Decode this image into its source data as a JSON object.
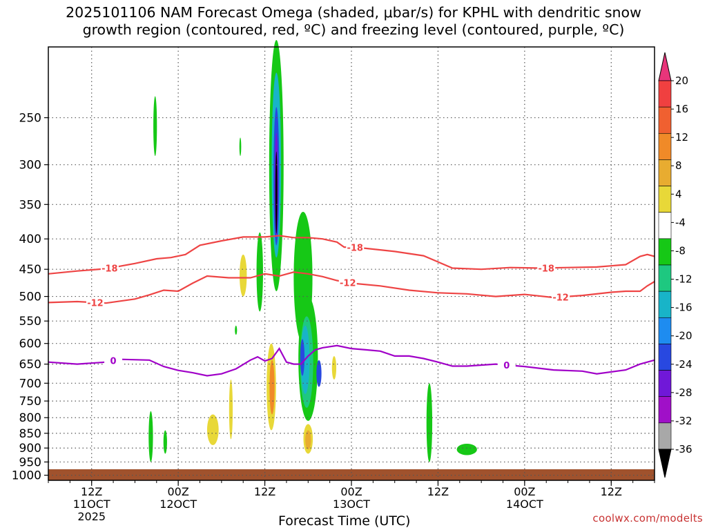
{
  "title_line1": "2025101106 NAM Forecast Omega (shaded, μbar/s) for KPHL with dendritic snow",
  "title_line2": "growth region (contoured, red, ºC) and freezing level (contoured, purple, ºC)",
  "credit": "coolwx.com/modelts",
  "chart_data": {
    "type": "heatmap",
    "xlabel": "Forecast Time (UTC)",
    "ylabel": "",
    "x_unit": "hours since 2025-10-11 06Z",
    "xlim": [
      0,
      84
    ],
    "ylim_hPa": [
      1020,
      190
    ],
    "x_ticks": [
      {
        "h": 6,
        "lines": [
          "12Z",
          "11OCT",
          "2025"
        ]
      },
      {
        "h": 18,
        "lines": [
          "00Z",
          "12OCT"
        ]
      },
      {
        "h": 30,
        "lines": [
          "12Z"
        ]
      },
      {
        "h": 42,
        "lines": [
          "00Z",
          "13OCT"
        ]
      },
      {
        "h": 54,
        "lines": [
          "12Z"
        ]
      },
      {
        "h": 66,
        "lines": [
          "00Z",
          "14OCT"
        ]
      },
      {
        "h": 78,
        "lines": [
          "12Z"
        ]
      }
    ],
    "y_ticks": [
      250,
      300,
      350,
      400,
      450,
      500,
      550,
      600,
      650,
      700,
      750,
      800,
      850,
      900,
      950,
      1000
    ],
    "colorbar": {
      "labels": [
        "20",
        "16",
        "12",
        "8",
        "4",
        "-4",
        "-8",
        "-12",
        "-16",
        "-20",
        "-24",
        "-28",
        "-32",
        "-36"
      ],
      "colors": [
        "#e8357a",
        "#f04040",
        "#f06030",
        "#f08a28",
        "#e8ac30",
        "#e8d838",
        "#ffffff",
        "#16c816",
        "#1ec880",
        "#18b4c8",
        "#1e8cf0",
        "#2848e0",
        "#7018d8",
        "#a010c8",
        "#a8a8a8",
        "#000000"
      ]
    },
    "series": [
      {
        "name": "-18",
        "color": "#ee4444",
        "labels_at_h": [
          8.5,
          42.5,
          69
        ],
        "x": [
          0,
          4,
          8,
          12,
          15,
          17,
          19,
          21,
          24,
          27,
          30,
          32,
          34,
          36,
          38,
          40,
          41,
          42,
          44,
          48,
          52,
          56,
          60,
          64,
          68,
          72,
          76,
          80,
          82,
          83,
          84
        ],
        "p": [
          458,
          453,
          449,
          440,
          432,
          430,
          425,
          410,
          403,
          397,
          397,
          395,
          398,
          398,
          400,
          405,
          413,
          413,
          415,
          420,
          427,
          448,
          450,
          447,
          448,
          447,
          446,
          442,
          428,
          425,
          428
        ]
      },
      {
        "name": "-12",
        "color": "#ee4444",
        "labels_at_h": [
          6.5,
          41.5,
          71
        ],
        "x": [
          0,
          4,
          8,
          12,
          14,
          16,
          18,
          20,
          22,
          25,
          28,
          30,
          32,
          34,
          36,
          38,
          40,
          42,
          46,
          50,
          54,
          58,
          62,
          66,
          70,
          74,
          78,
          80,
          82,
          83,
          84
        ],
        "p": [
          512,
          510,
          513,
          505,
          497,
          488,
          490,
          475,
          462,
          465,
          465,
          458,
          462,
          455,
          458,
          463,
          470,
          475,
          480,
          488,
          493,
          495,
          500,
          496,
          502,
          498,
          492,
          490,
          490,
          480,
          472
        ]
      },
      {
        "name": "0",
        "color": "#a000c8",
        "labels_at_h": [
          9,
          63.5
        ],
        "x": [
          0,
          4,
          8,
          10,
          14,
          16,
          18,
          20,
          22,
          24,
          26,
          28,
          29,
          30,
          31,
          32,
          33,
          34,
          35,
          36,
          37,
          38,
          40,
          42,
          44,
          46,
          48,
          50,
          52,
          54,
          56,
          58,
          62,
          66,
          70,
          74,
          76,
          80,
          82,
          84
        ],
        "p": [
          645,
          650,
          645,
          638,
          640,
          656,
          666,
          672,
          680,
          675,
          662,
          640,
          632,
          642,
          636,
          612,
          645,
          650,
          650,
          630,
          615,
          610,
          605,
          612,
          615,
          618,
          630,
          630,
          636,
          645,
          655,
          655,
          650,
          656,
          665,
          668,
          675,
          665,
          650,
          640
        ]
      }
    ],
    "omega_blobs": [
      {
        "h": 31.6,
        "p": 185,
        "w": 2.0,
        "h2": 490,
        "fill": "#16c816"
      },
      {
        "h": 31.6,
        "p": 210,
        "w": 1.3,
        "h2": 430,
        "fill": "#18b4c8"
      },
      {
        "h": 31.6,
        "p": 240,
        "w": 0.8,
        "h2": 410,
        "fill": "#2848e0"
      },
      {
        "h": 31.6,
        "p": 265,
        "w": 0.5,
        "h2": 395,
        "fill": "#7018d8"
      },
      {
        "h": 31.6,
        "p": 285,
        "w": 0.28,
        "h2": 392,
        "fill": "#000000"
      },
      {
        "h": 35.3,
        "p": 360,
        "w": 2.6,
        "h2": 600,
        "fill": "#16c816"
      },
      {
        "h": 36.0,
        "p": 500,
        "w": 2.7,
        "h2": 810,
        "fill": "#16c816"
      },
      {
        "h": 35.8,
        "p": 540,
        "w": 1.8,
        "h2": 770,
        "fill": "#1ec880"
      },
      {
        "h": 35.6,
        "p": 560,
        "w": 1.2,
        "h2": 730,
        "fill": "#18b4c8"
      },
      {
        "h": 35.2,
        "p": 590,
        "w": 0.6,
        "h2": 680,
        "fill": "#2848e0"
      },
      {
        "h": 37.5,
        "p": 640,
        "w": 0.7,
        "h2": 710,
        "fill": "#2848e0"
      },
      {
        "h": 29.3,
        "p": 390,
        "w": 0.9,
        "h2": 530,
        "fill": "#16c816"
      },
      {
        "h": 30.9,
        "p": 600,
        "w": 1.3,
        "h2": 840,
        "fill": "#e8d838"
      },
      {
        "h": 31.0,
        "p": 640,
        "w": 0.7,
        "h2": 790,
        "fill": "#f08a28"
      },
      {
        "h": 36.0,
        "p": 820,
        "w": 1.3,
        "h2": 920,
        "fill": "#e8d838"
      },
      {
        "h": 36.0,
        "p": 840,
        "w": 0.8,
        "h2": 905,
        "fill": "#e8ac30"
      },
      {
        "h": 39.6,
        "p": 630,
        "w": 0.6,
        "h2": 690,
        "fill": "#e8d838"
      },
      {
        "h": 27.0,
        "p": 425,
        "w": 1.0,
        "h2": 500,
        "fill": "#e8d838"
      },
      {
        "h": 14.8,
        "p": 230,
        "w": 0.5,
        "h2": 290,
        "fill": "#16c816"
      },
      {
        "h": 26.6,
        "p": 270,
        "w": 0.25,
        "h2": 290,
        "fill": "#16c816"
      },
      {
        "h": 26.0,
        "p": 560,
        "w": 0.3,
        "h2": 580,
        "fill": "#16c816"
      },
      {
        "h": 25.3,
        "p": 690,
        "w": 0.5,
        "h2": 870,
        "fill": "#e8d838"
      },
      {
        "h": 22.8,
        "p": 790,
        "w": 1.6,
        "h2": 890,
        "fill": "#e8d838"
      },
      {
        "h": 14.2,
        "p": 780,
        "w": 0.6,
        "h2": 950,
        "fill": "#16c816"
      },
      {
        "h": 16.2,
        "p": 840,
        "w": 0.5,
        "h2": 920,
        "fill": "#16c816"
      },
      {
        "h": 52.8,
        "p": 700,
        "w": 0.8,
        "h2": 950,
        "fill": "#16c816"
      },
      {
        "h": 58.0,
        "p": 885,
        "w": 2.8,
        "h2": 925,
        "fill": "#16c816"
      }
    ]
  }
}
